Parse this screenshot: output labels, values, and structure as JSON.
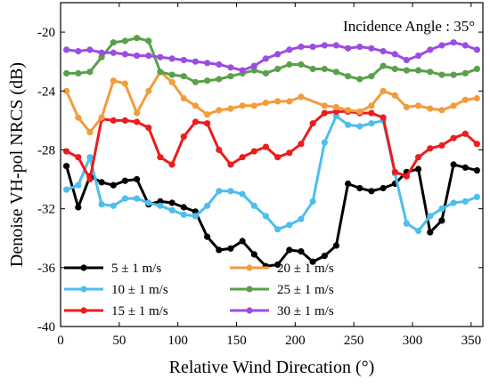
{
  "chart_data": {
    "type": "line",
    "xlabel": "Relative Wind Direcation (°)",
    "ylabel": "Denoise VH-pol NRCS (dB)",
    "annotation": "Incidence Angle : 35°",
    "xlim": [
      0,
      360
    ],
    "ylim": [
      -40,
      -18
    ],
    "xticks": [
      0,
      50,
      100,
      150,
      200,
      250,
      300,
      350
    ],
    "yticks": [
      -40,
      -36,
      -32,
      -28,
      -24,
      -20
    ],
    "legend_position": "bottom-left",
    "series": [
      {
        "name": "5 ± 1 m/s",
        "color": "#000000",
        "x": [
          5,
          15,
          25,
          35,
          45,
          55,
          65,
          75,
          85,
          95,
          105,
          115,
          125,
          135,
          145,
          155,
          165,
          175,
          185,
          195,
          205,
          215,
          225,
          235,
          245,
          255,
          265,
          275,
          285,
          295,
          305,
          315,
          325,
          335,
          345,
          355
        ],
        "y": [
          -29.1,
          -31.9,
          -29.8,
          -30.2,
          -30.4,
          -30.1,
          -30.0,
          -31.7,
          -31.5,
          -31.6,
          -31.9,
          -32.2,
          -33.9,
          -34.8,
          -34.7,
          -34.2,
          -35.1,
          -35.9,
          -35.8,
          -34.8,
          -34.9,
          -35.6,
          -35.2,
          -34.5,
          -30.3,
          -30.6,
          -30.8,
          -30.6,
          -30.3,
          -29.5,
          -29.3,
          -33.6,
          -32.8,
          -29.0,
          -29.2,
          -29.4
        ]
      },
      {
        "name": "10 ± 1 m/s",
        "color": "#4dbeee",
        "x": [
          5,
          15,
          25,
          35,
          45,
          55,
          65,
          75,
          85,
          95,
          105,
          115,
          125,
          135,
          145,
          155,
          165,
          175,
          185,
          195,
          205,
          215,
          225,
          235,
          245,
          255,
          265,
          275,
          285,
          295,
          305,
          315,
          325,
          335,
          345,
          355
        ],
        "y": [
          -30.7,
          -30.4,
          -28.5,
          -31.7,
          -31.8,
          -31.3,
          -31.3,
          -31.6,
          -31.8,
          -32.1,
          -32.4,
          -32.5,
          -31.8,
          -30.8,
          -30.8,
          -31.0,
          -31.8,
          -32.5,
          -33.4,
          -33.1,
          -32.7,
          -31.5,
          -27.5,
          -25.7,
          -26.3,
          -26.4,
          -26.2,
          -26.0,
          -29.6,
          -33.0,
          -33.5,
          -32.5,
          -32.0,
          -31.6,
          -31.5,
          -31.2
        ]
      },
      {
        "name": "15 ± 1 m/s",
        "color": "#ee1c1c",
        "x": [
          5,
          15,
          25,
          35,
          45,
          55,
          65,
          75,
          85,
          95,
          105,
          115,
          125,
          135,
          145,
          155,
          165,
          175,
          185,
          195,
          205,
          215,
          225,
          235,
          245,
          255,
          265,
          275,
          285,
          295,
          305,
          315,
          325,
          335,
          345,
          355
        ],
        "y": [
          -28.1,
          -28.5,
          -30.0,
          -25.9,
          -26.0,
          -26.0,
          -26.1,
          -26.5,
          -28.5,
          -29.0,
          -27.1,
          -26.1,
          -26.2,
          -28.0,
          -29.0,
          -28.5,
          -28.1,
          -27.8,
          -28.5,
          -28.2,
          -27.6,
          -26.2,
          -25.5,
          -25.4,
          -25.4,
          -25.5,
          -25.5,
          -25.8,
          -29.5,
          -29.8,
          -28.5,
          -27.9,
          -27.7,
          -27.2,
          -26.9,
          -27.6
        ]
      },
      {
        "name": "20 ± 1 m/s",
        "color": "#f39c3c",
        "x": [
          5,
          15,
          25,
          35,
          45,
          55,
          65,
          75,
          85,
          95,
          105,
          115,
          125,
          135,
          145,
          155,
          165,
          175,
          185,
          195,
          205,
          225,
          235,
          245,
          255,
          265,
          275,
          285,
          295,
          305,
          315,
          325,
          335,
          345,
          355
        ],
        "y": [
          -24.0,
          -25.8,
          -26.8,
          -25.8,
          -23.3,
          -23.5,
          -25.5,
          -24.0,
          -22.7,
          -23.4,
          -24.5,
          -25.0,
          -25.6,
          -25.3,
          -25.2,
          -25.0,
          -25.0,
          -24.8,
          -24.7,
          -24.7,
          -24.4,
          -25.0,
          -25.1,
          -25.3,
          -25.4,
          -25.0,
          -24.0,
          -24.3,
          -25.1,
          -25.0,
          -25.2,
          -25.3,
          -25.0,
          -24.6,
          -24.5
        ]
      },
      {
        "name": "25 ± 1 m/s",
        "color": "#5aa04a",
        "x": [
          5,
          15,
          25,
          35,
          45,
          55,
          65,
          75,
          85,
          95,
          105,
          115,
          125,
          135,
          145,
          155,
          165,
          175,
          185,
          195,
          205,
          215,
          225,
          235,
          245,
          255,
          265,
          275,
          285,
          295,
          305,
          315,
          325,
          335,
          345,
          355
        ],
        "y": [
          -22.8,
          -22.8,
          -22.7,
          -21.7,
          -20.7,
          -20.6,
          -20.4,
          -20.6,
          -22.7,
          -22.9,
          -23.0,
          -23.4,
          -23.3,
          -23.2,
          -23.0,
          -22.8,
          -22.6,
          -22.8,
          -22.5,
          -22.2,
          -22.2,
          -22.5,
          -22.5,
          -22.7,
          -23.0,
          -23.2,
          -23.0,
          -22.3,
          -22.5,
          -22.6,
          -22.6,
          -22.7,
          -22.9,
          -22.9,
          -22.8,
          -22.5
        ]
      },
      {
        "name": "30 ± 1 m/s",
        "color": "#9b4de3",
        "x": [
          5,
          15,
          25,
          35,
          45,
          55,
          65,
          75,
          85,
          95,
          105,
          115,
          125,
          135,
          145,
          155,
          165,
          175,
          185,
          195,
          205,
          215,
          225,
          235,
          245,
          255,
          265,
          275,
          285,
          295,
          305,
          315,
          325,
          335,
          345,
          355
        ],
        "y": [
          -21.2,
          -21.3,
          -21.2,
          -21.4,
          -21.4,
          -21.5,
          -21.6,
          -21.6,
          -21.7,
          -21.8,
          -21.9,
          -22.0,
          -22.1,
          -22.2,
          -22.4,
          -22.6,
          -22.3,
          -21.8,
          -21.5,
          -21.2,
          -21.0,
          -21.0,
          -20.9,
          -20.9,
          -21.1,
          -21.0,
          -21.1,
          -21.3,
          -21.5,
          -21.9,
          -21.6,
          -21.2,
          -20.9,
          -20.7,
          -20.9,
          -21.2
        ]
      }
    ]
  }
}
